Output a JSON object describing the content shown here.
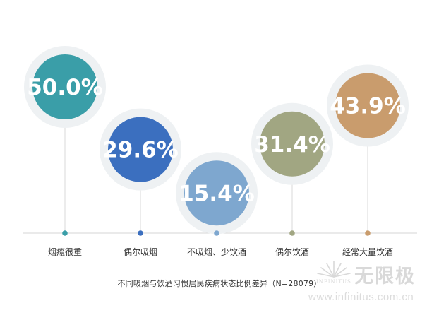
{
  "chart_data": {
    "type": "bubble",
    "categories": [
      "烟瘾很重",
      "偶尔吸烟",
      "不吸烟、少饮酒",
      "偶尔饮酒",
      "经常大量饮酒"
    ],
    "values": [
      50.0,
      29.6,
      15.4,
      31.4,
      43.9
    ],
    "value_labels": [
      "50.0%",
      "29.6%",
      "15.4%",
      "31.4%",
      "43.9%"
    ],
    "colors": [
      "#3a9ea8",
      "#3b6fbf",
      "#7ea7cf",
      "#a1a682",
      "#c99c6d"
    ],
    "title": "",
    "xlabel": "",
    "ylabel": ""
  },
  "caption": "不同吸烟与饮酒习惯居民疾病状态比例差异（N=28079）",
  "watermark": {
    "cn": "无限极",
    "en": "INFINITUS",
    "url": "www.infinitus.com.cn"
  }
}
